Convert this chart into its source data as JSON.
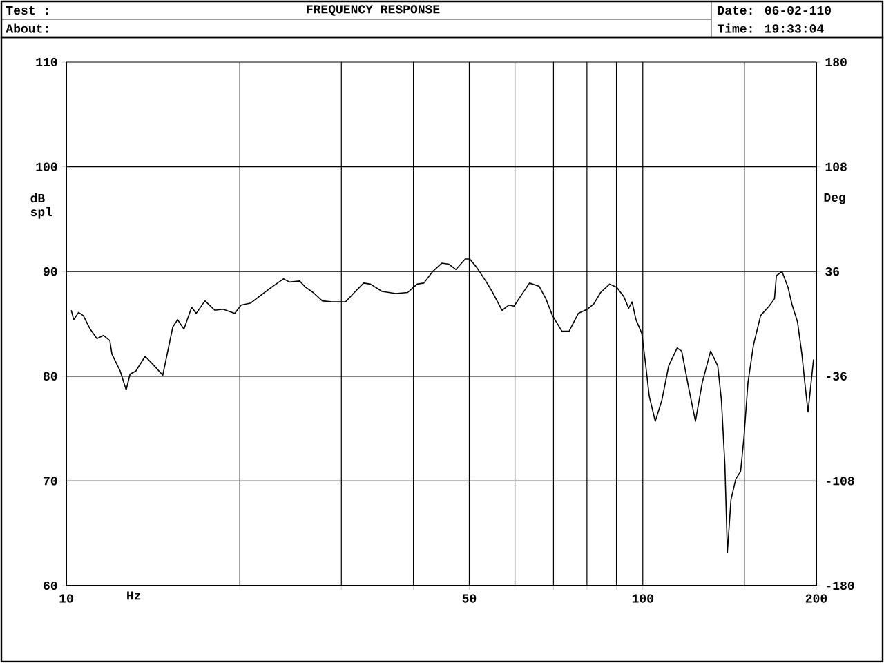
{
  "chart_data": {
    "type": "line",
    "title": "FREQUENCY RESPONSE",
    "xlabel": "Hz",
    "ylabel": "dB spl",
    "y2label": "Deg",
    "annotations": [
      "Test :",
      "About:",
      "Date: 06-02-110",
      "Time: 19:33:04"
    ],
    "log": "x",
    "grid": true,
    "line_style": "solid",
    "xlim": [
      10,
      200
    ],
    "ylim": [
      60,
      110
    ],
    "y2lim": [
      -180,
      180
    ],
    "xticks": [
      10,
      {
        "value": 20,
        "label": null
      },
      {
        "value": 30,
        "label": null
      },
      {
        "value": 40,
        "label": null
      },
      50,
      {
        "value": 60,
        "label": null
      },
      {
        "value": 70,
        "label": null
      },
      {
        "value": 80,
        "label": null
      },
      {
        "value": 90,
        "label": null
      },
      100,
      {
        "value": 150,
        "label": null
      },
      200
    ],
    "yticks": [
      60,
      70,
      80,
      90,
      100,
      110
    ],
    "y2ticks": [
      -180,
      -108,
      -36,
      36,
      108,
      180
    ],
    "x": [
      10.2,
      10.3,
      10.5,
      10.7,
      11.0,
      11.3,
      11.6,
      11.9,
      12.0,
      12.4,
      12.7,
      12.9,
      13.2,
      13.7,
      14.1,
      14.7,
      15.3,
      15.6,
      16.0,
      16.5,
      16.8,
      17.4,
      18.1,
      18.7,
      19.6,
      20.1,
      20.9,
      21.7,
      22.7,
      23.8,
      24.4,
      25.4,
      26.0,
      26.8,
      27.8,
      28.9,
      30.5,
      31.6,
      32.8,
      33.7,
      35.3,
      37.3,
      39.1,
      40.6,
      41.7,
      43.2,
      44.8,
      46.1,
      47.4,
      49.2,
      50.1,
      51.5,
      53.4,
      54.9,
      57.0,
      58.6,
      59.8,
      61.3,
      63.6,
      66.1,
      67.9,
      69.7,
      72.4,
      74.5,
      77.3,
      80.1,
      82.2,
      84.5,
      87.6,
      90.1,
      92.7,
      94.5,
      95.8,
      97.3,
      99.6,
      101.1,
      102.6,
      105.1,
      107.9,
      110.9,
      114.7,
      116.8,
      120.0,
      123.4,
      126.8,
      131.1,
      134.9,
      136.9,
      138.8,
      140.2,
      142.2,
      145.0,
      147.8,
      149.8,
      152.2,
      155.6,
      160.1,
      165.6,
      169.2,
      170.5,
      174.4,
      178.6,
      181.4,
      185.5,
      188.8,
      191.0,
      193.5,
      197.8
    ],
    "series": [
      {
        "color": "#000000",
        "values": [
          86.3,
          85.4,
          86.1,
          85.8,
          84.5,
          83.6,
          83.9,
          83.4,
          82.1,
          80.5,
          78.7,
          80.2,
          80.5,
          81.9,
          81.2,
          80.1,
          84.7,
          85.4,
          84.5,
          86.6,
          86.0,
          87.2,
          86.3,
          86.4,
          86.0,
          86.8,
          87.0,
          87.7,
          88.5,
          89.3,
          89.0,
          89.1,
          88.5,
          88.0,
          87.2,
          87.1,
          87.1,
          88.0,
          88.9,
          88.8,
          88.1,
          87.9,
          88.0,
          88.8,
          88.9,
          90.0,
          90.8,
          90.7,
          90.2,
          91.2,
          91.2,
          90.4,
          89.1,
          88.0,
          86.3,
          86.8,
          86.7,
          87.6,
          88.9,
          88.6,
          87.4,
          85.8,
          84.3,
          84.3,
          86.0,
          86.4,
          86.9,
          88.0,
          88.8,
          88.5,
          87.6,
          86.5,
          87.1,
          85.4,
          84.1,
          81.2,
          78.1,
          75.7,
          77.7,
          81.0,
          82.7,
          82.4,
          79.0,
          75.7,
          79.4,
          82.4,
          81.0,
          77.7,
          71.5,
          63.2,
          68.2,
          70.2,
          70.9,
          74.2,
          79.4,
          83.0,
          85.8,
          86.7,
          87.4,
          89.6,
          90.0,
          88.5,
          86.9,
          85.2,
          82.1,
          79.4,
          76.6,
          81.6
        ]
      }
    ]
  }
}
